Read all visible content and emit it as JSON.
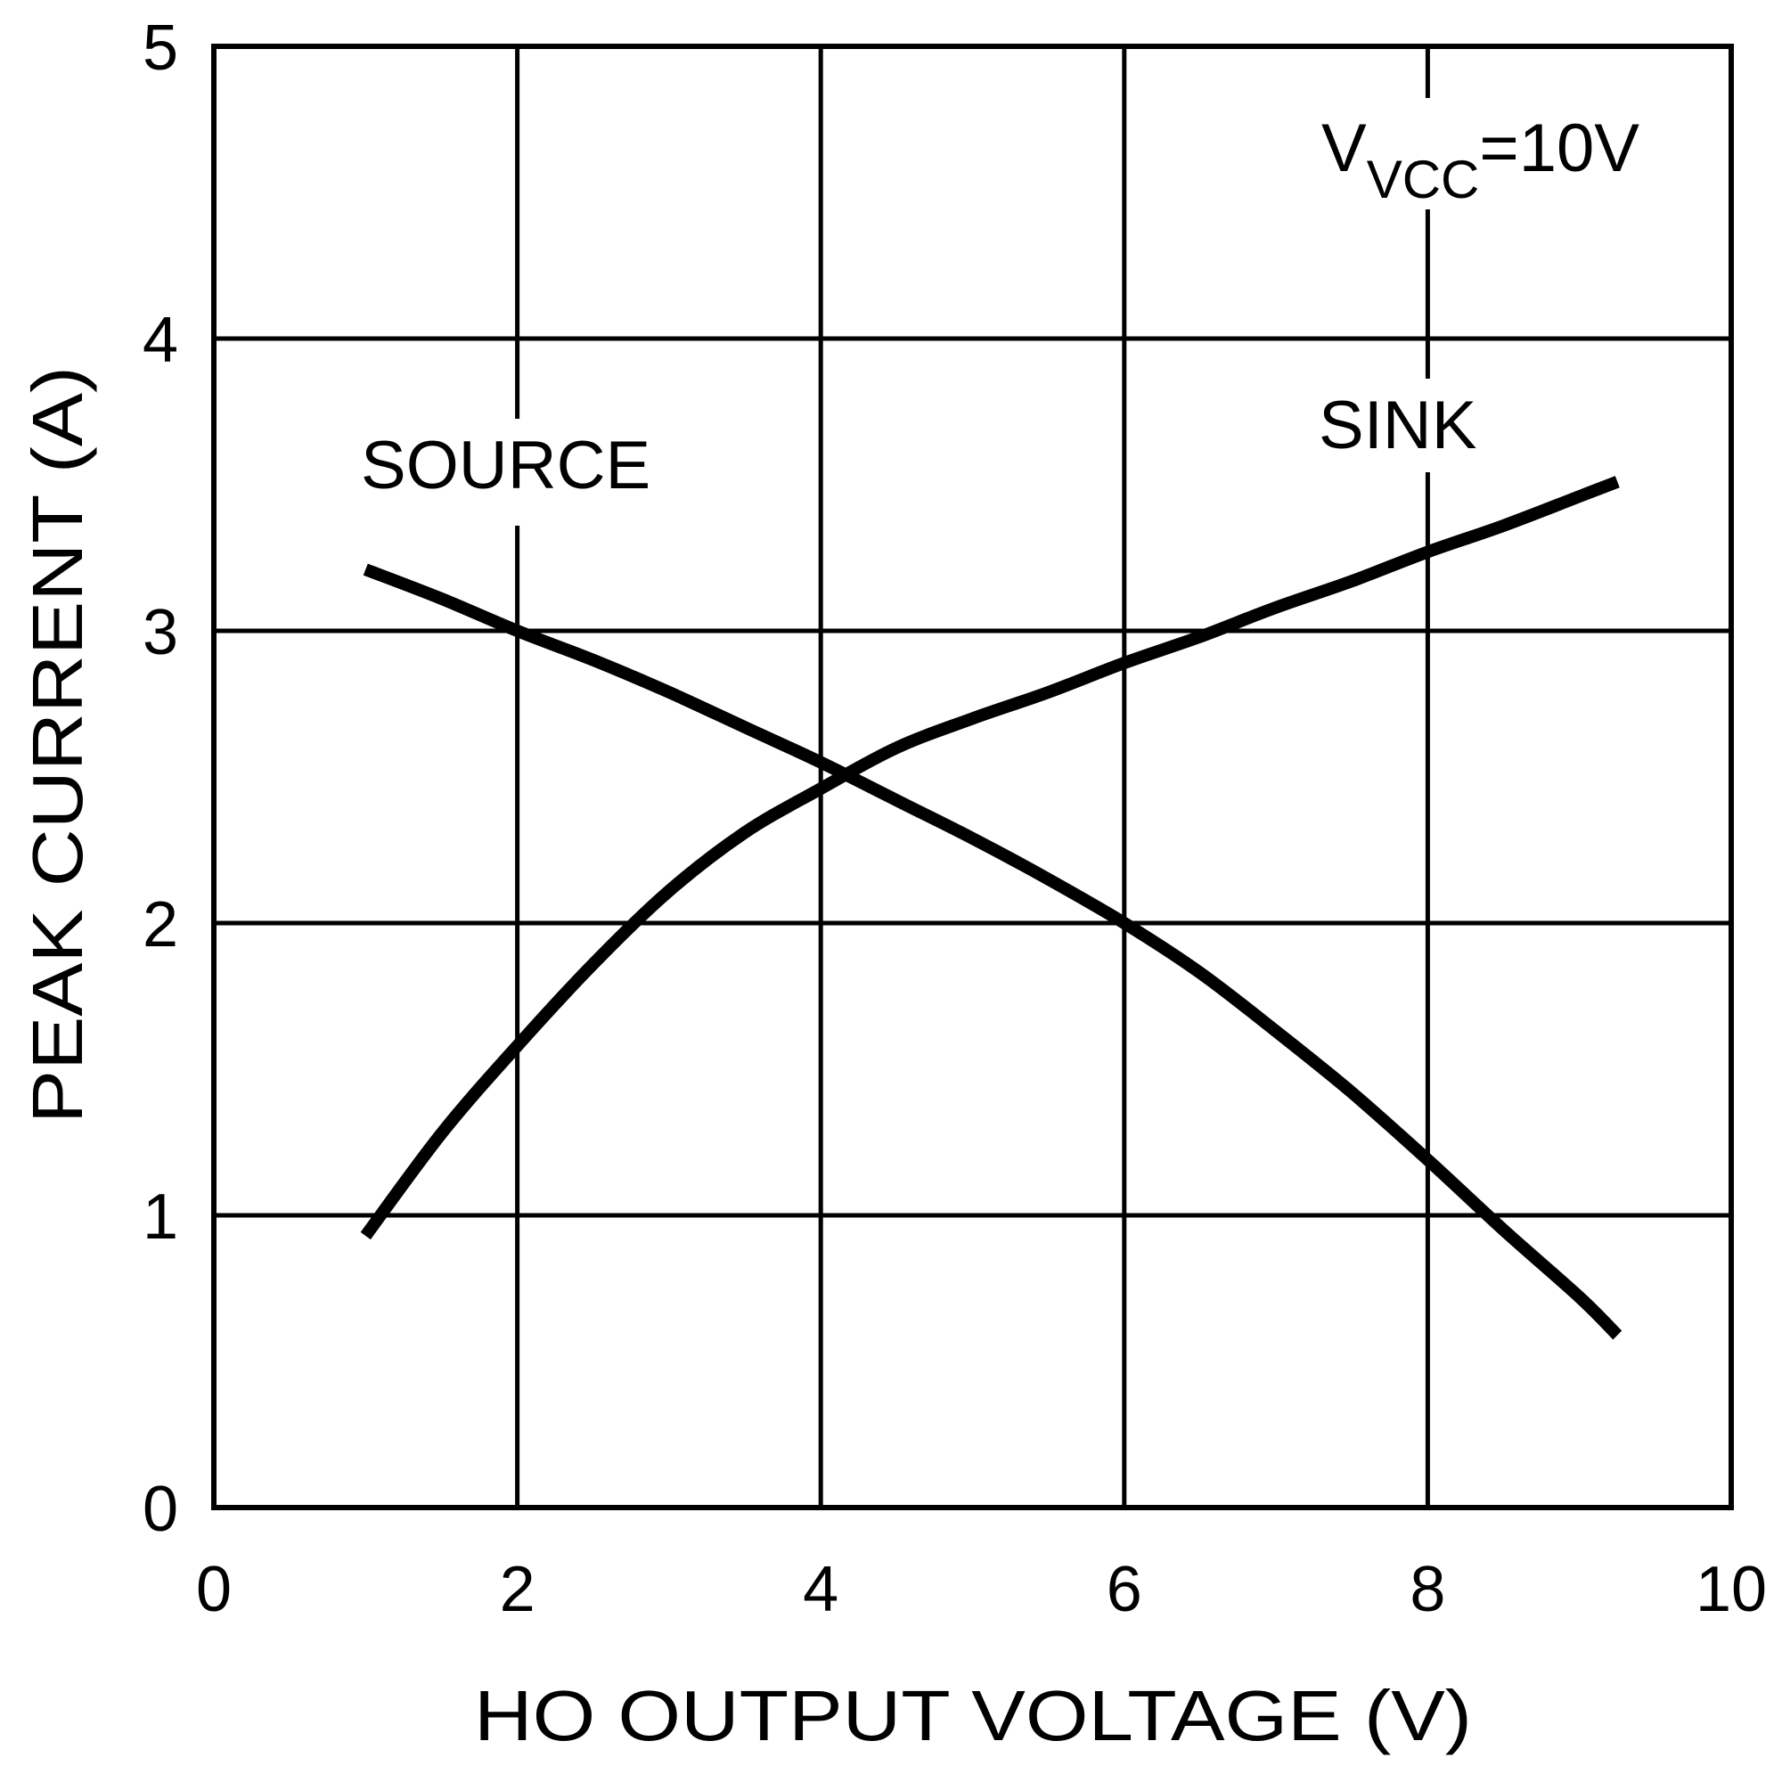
{
  "chart_data": {
    "type": "line",
    "title": "",
    "xlabel": "HO OUTPUT VOLTAGE (V)",
    "ylabel": "PEAK CURRENT (A)",
    "xlim": [
      0,
      10
    ],
    "ylim": [
      0,
      5
    ],
    "xticks": [
      0,
      2,
      4,
      6,
      8,
      10
    ],
    "yticks": [
      0,
      1,
      2,
      3,
      4,
      5
    ],
    "xtick_labels": [
      "0",
      "2",
      "4",
      "6",
      "8",
      "10"
    ],
    "ytick_labels": [
      "0",
      "1",
      "2",
      "3",
      "4",
      "5"
    ],
    "grid": true,
    "legend": "none (inline curve labels)",
    "annotations": [
      {
        "text": "V",
        "subscript": "VCC",
        "suffix": "=10V",
        "position": "top-right"
      }
    ],
    "series": [
      {
        "name": "SOURCE",
        "x": [
          1.0,
          1.5,
          2.0,
          2.5,
          3.0,
          3.5,
          4.0,
          4.5,
          5.0,
          5.5,
          6.0,
          6.5,
          7.0,
          7.5,
          8.0,
          8.5,
          9.0,
          9.25
        ],
        "y": [
          3.21,
          3.11,
          3.0,
          2.9,
          2.79,
          2.67,
          2.55,
          2.42,
          2.29,
          2.15,
          2.0,
          1.83,
          1.63,
          1.42,
          1.19,
          0.95,
          0.72,
          0.59
        ]
      },
      {
        "name": "SINK",
        "x": [
          1.0,
          1.5,
          2.0,
          2.5,
          3.0,
          3.5,
          4.0,
          4.5,
          5.0,
          5.5,
          6.0,
          6.5,
          7.0,
          7.5,
          8.0,
          8.5,
          9.0,
          9.25
        ],
        "y": [
          0.93,
          1.28,
          1.58,
          1.86,
          2.11,
          2.31,
          2.46,
          2.6,
          2.7,
          2.79,
          2.89,
          2.98,
          3.08,
          3.17,
          3.27,
          3.36,
          3.46,
          3.51
        ]
      }
    ],
    "crossover": {
      "x": 4.1,
      "y": 2.53
    }
  },
  "labels": {
    "source": "SOURCE",
    "sink": "SINK",
    "vcc_main": "V",
    "vcc_sub": "VCC",
    "vcc_value": "=10V",
    "xlabel": "HO OUTPUT VOLTAGE (V)",
    "ylabel": "PEAK CURRENT (A)"
  },
  "colors": {
    "line": "#000000",
    "background": "#ffffff"
  }
}
